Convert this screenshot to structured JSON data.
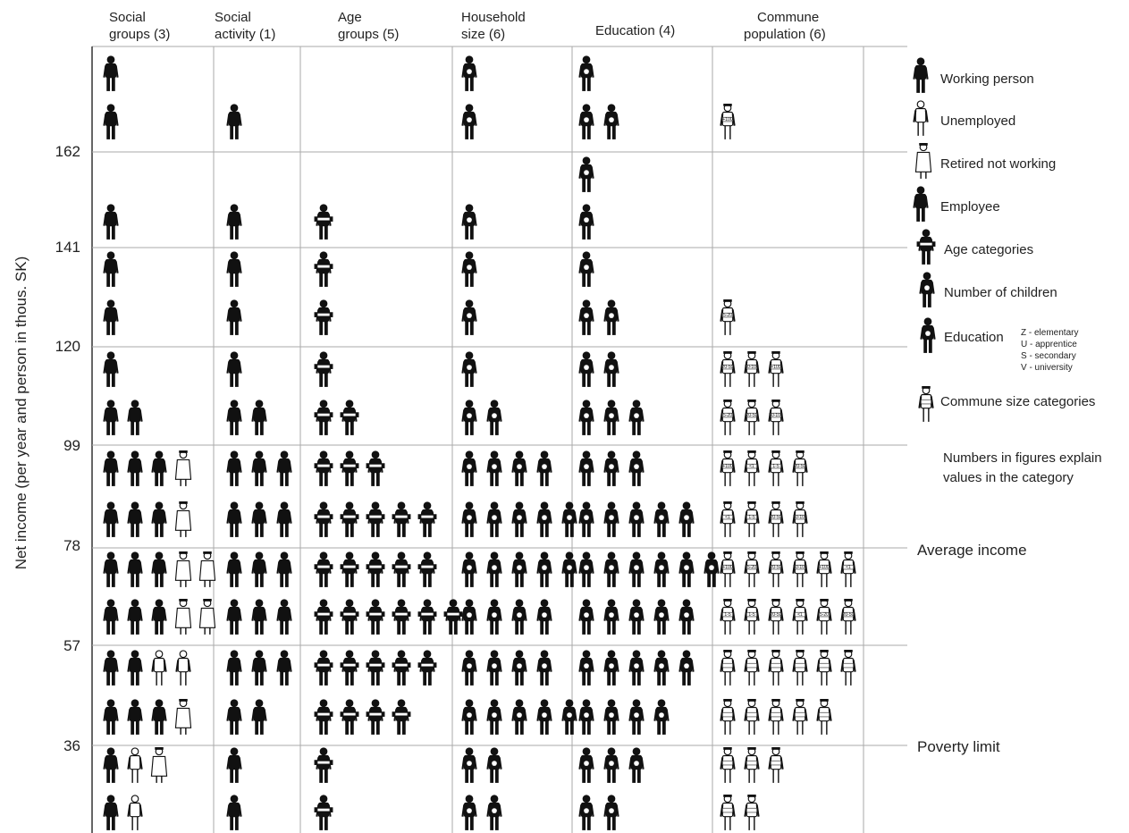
{
  "column_headers": [
    {
      "line1": "Social",
      "line2": "groups (3)"
    },
    {
      "line1": "Social",
      "line2": "activity (1)"
    },
    {
      "line1": "Age",
      "line2": "groups (5)"
    },
    {
      "line1": "Household",
      "line2": "size (6)"
    },
    {
      "line1": "Education (4)",
      "line2": ""
    },
    {
      "line1": "Commune",
      "line2": "population  (6)"
    }
  ],
  "y_axis_label": "Net income (per year and person in thous. SK)",
  "y_ticks": [
    "162",
    "141",
    "120",
    "99",
    "78",
    "57",
    "36"
  ],
  "legend": {
    "items": [
      {
        "icon": "working-person-icon",
        "label": "Working person"
      },
      {
        "icon": "unemployed-icon",
        "label": "Unemployed"
      },
      {
        "icon": "retired-icon",
        "label": "Retired not  working"
      },
      {
        "icon": "employee-icon",
        "label": "Employee"
      },
      {
        "icon": "age-category-icon",
        "label": "Age categories"
      },
      {
        "icon": "children-icon",
        "label": "Number of children"
      },
      {
        "icon": "education-icon",
        "label": "Education"
      },
      {
        "icon": "commune-size-icon",
        "label": "Commune size categories"
      }
    ],
    "education_codes": [
      "Z - elementary",
      "U - apprentice",
      "S - secondary",
      "V - university"
    ],
    "note": "Numbers in figures explain values in the category"
  },
  "side_labels": {
    "average": "Average income",
    "poverty": "Poverty limit"
  },
  "commune_labels": [
    "+100",
    "5-20",
    "20-50",
    "50-100",
    "+100",
    "5-20",
    "20-50",
    "50-100",
    "+100",
    "<1",
    "1-5",
    "20-50",
    "<1",
    "1-5",
    "20-50",
    "50-100",
    "+100",
    "5-20",
    "20-50",
    "50-100",
    "+100",
    "<1",
    "1-5",
    "1-5",
    "20-50",
    "<1",
    "5-20",
    "20-50"
  ],
  "colors": {
    "figure_dark": "#111111",
    "figure_light": "#ffffff",
    "grid": "#aaaaaa"
  },
  "chart_data": {
    "type": "pictogram",
    "y_ticks": [
      162,
      141,
      120,
      99,
      78,
      57,
      36
    ],
    "categories": [
      "Social groups (3)",
      "Social activity (1)",
      "Age groups (5)",
      "Household size (6)",
      "Education (4)",
      "Commune population (6)"
    ],
    "figure_types": [
      "working",
      "unemployed",
      "retired",
      "employee",
      "age",
      "children",
      "education",
      "commune"
    ],
    "rows": [
      {
        "cells": [
          [
            0
          ],
          [],
          [],
          [
            5
          ],
          [
            6
          ],
          []
        ]
      },
      {
        "cells": [
          [
            0
          ],
          [
            3
          ],
          [],
          [
            5
          ],
          [
            6,
            6
          ],
          [
            7
          ]
        ]
      },
      {
        "cells": [
          [],
          [],
          [],
          [],
          [
            6
          ],
          []
        ]
      },
      {
        "cells": [
          [
            0
          ],
          [
            3
          ],
          [
            4
          ],
          [
            5
          ],
          [
            6
          ],
          []
        ]
      },
      {
        "cells": [
          [
            0
          ],
          [
            3
          ],
          [
            4
          ],
          [
            5
          ],
          [
            6
          ],
          []
        ]
      },
      {
        "cells": [
          [
            0
          ],
          [
            3
          ],
          [
            4
          ],
          [
            5
          ],
          [
            6,
            6
          ],
          [
            7
          ]
        ]
      },
      {
        "cells": [
          [
            0
          ],
          [
            3
          ],
          [
            4
          ],
          [
            5
          ],
          [
            6,
            6
          ],
          [
            7,
            7,
            7
          ]
        ]
      },
      {
        "cells": [
          [
            0,
            0
          ],
          [
            3,
            3
          ],
          [
            4,
            4
          ],
          [
            5,
            5
          ],
          [
            6,
            6,
            6
          ],
          [
            7,
            7,
            7
          ]
        ]
      },
      {
        "cells": [
          [
            0,
            0,
            0,
            2
          ],
          [
            3,
            3,
            3
          ],
          [
            4,
            4,
            4
          ],
          [
            5,
            5,
            5,
            5
          ],
          [
            6,
            6,
            6
          ],
          [
            7,
            7,
            7,
            7
          ]
        ]
      },
      {
        "cells": [
          [
            0,
            0,
            0,
            2
          ],
          [
            3,
            3,
            3
          ],
          [
            4,
            4,
            4,
            4,
            4
          ],
          [
            5,
            5,
            5,
            5,
            5
          ],
          [
            6,
            6,
            6,
            6,
            6
          ],
          [
            7,
            7,
            7,
            7
          ]
        ]
      },
      {
        "cells": [
          [
            0,
            0,
            0,
            2,
            2
          ],
          [
            3,
            3,
            3
          ],
          [
            4,
            4,
            4,
            4,
            4
          ],
          [
            5,
            5,
            5,
            5,
            5
          ],
          [
            6,
            6,
            6,
            6,
            6,
            6
          ],
          [
            7,
            7,
            7,
            7,
            7,
            7
          ]
        ]
      },
      {
        "cells": [
          [
            0,
            0,
            0,
            2,
            2
          ],
          [
            3,
            3,
            3
          ],
          [
            4,
            4,
            4,
            4,
            4,
            4
          ],
          [
            5,
            5,
            5,
            5
          ],
          [
            6,
            6,
            6,
            6,
            6
          ],
          [
            7,
            7,
            7,
            7,
            7,
            7
          ]
        ]
      },
      {
        "cells": [
          [
            0,
            0,
            1,
            1
          ],
          [
            3,
            3,
            3
          ],
          [
            4,
            4,
            4,
            4,
            4
          ],
          [
            5,
            5,
            5,
            5
          ],
          [
            6,
            6,
            6,
            6,
            6
          ],
          [
            7,
            7,
            7,
            7,
            7,
            7
          ]
        ]
      },
      {
        "cells": [
          [
            0,
            0,
            0,
            2
          ],
          [
            3,
            3
          ],
          [
            4,
            4,
            4,
            4
          ],
          [
            5,
            5,
            5,
            5,
            5
          ],
          [
            6,
            6,
            6,
            6
          ],
          [
            7,
            7,
            7,
            7,
            7
          ]
        ]
      },
      {
        "cells": [
          [
            0,
            1,
            2
          ],
          [
            3
          ],
          [
            4
          ],
          [
            5,
            5
          ],
          [
            6,
            6,
            6
          ],
          [
            7,
            7,
            7
          ]
        ]
      },
      {
        "cells": [
          [
            0,
            1
          ],
          [
            3
          ],
          [
            4
          ],
          [
            5,
            5
          ],
          [
            6,
            6
          ],
          [
            7,
            7
          ]
        ]
      }
    ]
  }
}
